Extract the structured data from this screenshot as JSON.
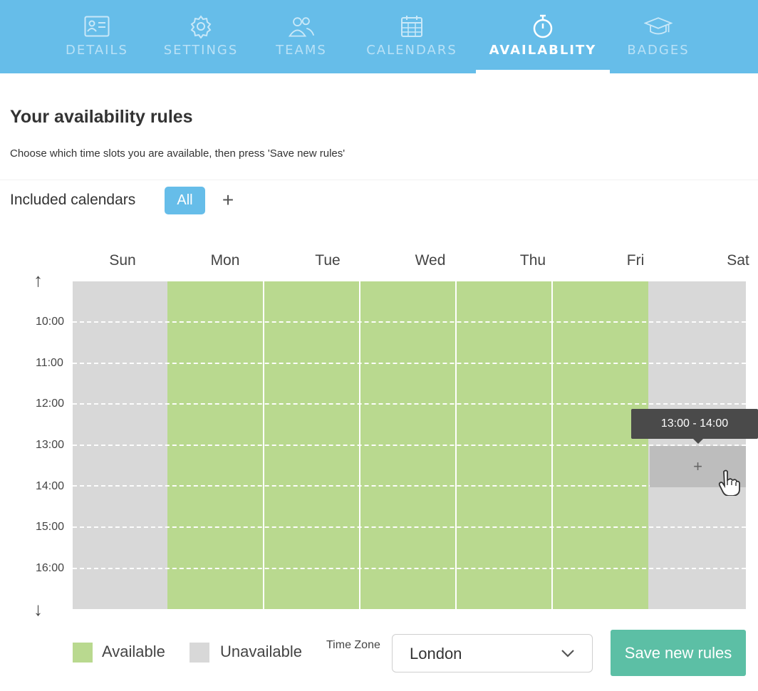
{
  "nav": {
    "tabs": [
      {
        "label": "DETAILS",
        "icon": "id-card-icon"
      },
      {
        "label": "SETTINGS",
        "icon": "gear-icon"
      },
      {
        "label": "TEAMS",
        "icon": "users-icon"
      },
      {
        "label": "CALENDARS",
        "icon": "calendar-icon"
      },
      {
        "label": "AVAILABLITY",
        "icon": "stopwatch-icon",
        "active": true
      },
      {
        "label": "BADGES",
        "icon": "graduation-cap-icon"
      }
    ],
    "background": "#66bde9"
  },
  "page": {
    "title": "Your availability rules",
    "subtitle": "Choose which time slots you are available, then press 'Save new rules'"
  },
  "calendars": {
    "label": "Included calendars",
    "chip": "All",
    "add": "+"
  },
  "schedule": {
    "days": [
      "Sun",
      "Mon",
      "Tue",
      "Wed",
      "Thu",
      "Fri",
      "Sat"
    ],
    "availability": [
      "unavailable",
      "available",
      "available",
      "available",
      "available",
      "available",
      "unavailable"
    ],
    "hours": [
      "10:00",
      "11:00",
      "12:00",
      "13:00",
      "14:00",
      "15:00",
      "16:00"
    ],
    "scroll_up": "↑",
    "scroll_down": "↓",
    "hover_slot": {
      "day": "Sat",
      "range": "13:00 - 14:00",
      "symbol": "+"
    }
  },
  "legend": {
    "available": {
      "label": "Available",
      "color": "#b9d98f"
    },
    "unavailable": {
      "label": "Unavailable",
      "color": "#d8d8d8"
    }
  },
  "timezone": {
    "label": "Time Zone",
    "value": "London"
  },
  "actions": {
    "save": "Save new rules"
  }
}
